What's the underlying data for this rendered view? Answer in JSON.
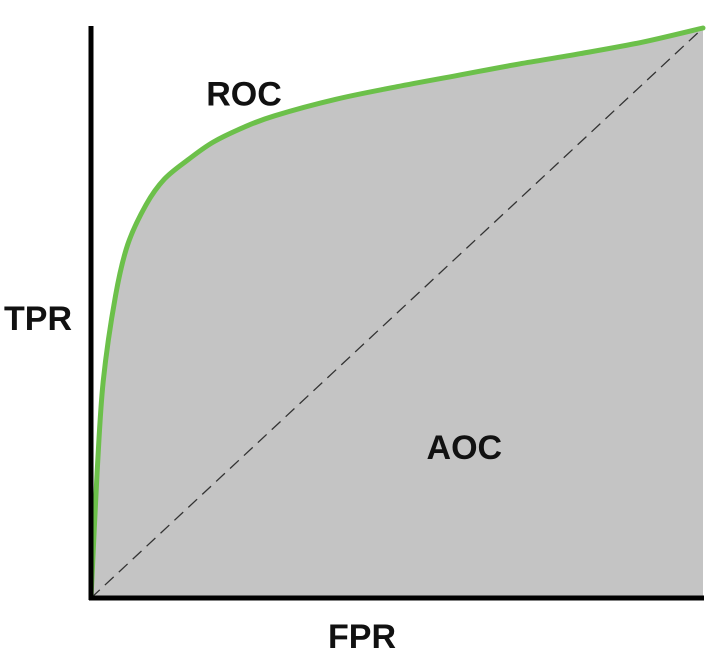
{
  "chart_data": {
    "type": "area",
    "xlabel": "FPR",
    "ylabel": "TPR",
    "xlim": [
      0,
      1
    ],
    "ylim": [
      0,
      1
    ],
    "grid": false,
    "series": [
      {
        "name": "ROC",
        "x": [
          0,
          0.01,
          0.02,
          0.04,
          0.06,
          0.09,
          0.12,
          0.16,
          0.2,
          0.25,
          0.3,
          0.4,
          0.5,
          0.6,
          0.7,
          0.8,
          0.9,
          1.0
        ],
        "y": [
          0,
          0.22,
          0.38,
          0.53,
          0.62,
          0.69,
          0.735,
          0.77,
          0.8,
          0.826,
          0.846,
          0.875,
          0.897,
          0.917,
          0.937,
          0.955,
          0.975,
          1.0
        ]
      }
    ],
    "reference_line": {
      "x": [
        0,
        1
      ],
      "y": [
        0,
        1
      ]
    },
    "annotations": [
      {
        "text": "ROC",
        "x": 0.25,
        "y": 0.88
      },
      {
        "text": "AOC",
        "x": 0.61,
        "y": 0.26
      }
    ],
    "colors": {
      "curve": "#6cc04a",
      "fill": "#c4c4c4",
      "axes": "#000000",
      "reference": "#333333"
    }
  }
}
